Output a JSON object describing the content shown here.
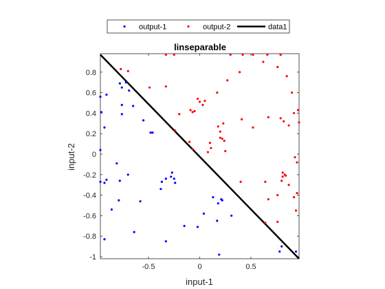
{
  "chart_data": {
    "type": "scatter",
    "title": "linseparable",
    "xlabel": "input-1",
    "ylabel": "input-2",
    "xlim": [
      -0.97,
      0.97
    ],
    "ylim": [
      -1.02,
      0.98
    ],
    "xticks": [
      -0.5,
      0,
      0.5
    ],
    "yticks": [
      -1,
      -0.8,
      -0.6,
      -0.4,
      -0.2,
      0,
      0.2,
      0.4,
      0.6,
      0.8
    ],
    "xtick_labels": [
      "-0.5",
      "0",
      "0.5"
    ],
    "ytick_labels": [
      "-1",
      "-0.8",
      "-0.6",
      "-0.4",
      "-0.2",
      "0",
      "0.2",
      "0.4",
      "0.6",
      "0.8"
    ],
    "grid": false,
    "legend_position": "top-center outside",
    "series": [
      {
        "name": "output-1",
        "kind": "points",
        "color": "#0000ff",
        "points": [
          [
            -0.97,
            0.56
          ],
          [
            -0.96,
            0.41
          ],
          [
            -0.91,
            0.58
          ],
          [
            -0.93,
            0.26
          ],
          [
            -0.78,
            0.69
          ],
          [
            -0.76,
            0.65
          ],
          [
            -0.72,
            0.7
          ],
          [
            -0.69,
            0.62
          ],
          [
            -0.76,
            0.39
          ],
          [
            -0.76,
            0.48
          ],
          [
            -0.65,
            0.47
          ],
          [
            -0.55,
            0.33
          ],
          [
            -0.48,
            0.21
          ],
          [
            -0.46,
            0.21
          ],
          [
            -0.97,
            0.04
          ],
          [
            -0.97,
            -0.27
          ],
          [
            -0.93,
            -0.28
          ],
          [
            -0.91,
            -0.25
          ],
          [
            -0.81,
            -0.09
          ],
          [
            -0.78,
            -0.26
          ],
          [
            -0.7,
            -0.2
          ],
          [
            -0.86,
            -0.54
          ],
          [
            -0.79,
            -0.45
          ],
          [
            -0.58,
            -0.46
          ],
          [
            -0.93,
            -0.83
          ],
          [
            -0.64,
            -0.76
          ],
          [
            -0.38,
            -0.34
          ],
          [
            -0.37,
            -0.27
          ],
          [
            -0.33,
            -0.24
          ],
          [
            -0.28,
            -0.22
          ],
          [
            -0.27,
            -0.18
          ],
          [
            -0.25,
            -0.24
          ],
          [
            -0.24,
            -0.28
          ],
          [
            -0.33,
            -0.85
          ],
          [
            -0.15,
            -0.7
          ],
          [
            -0.02,
            -0.71
          ],
          [
            0.04,
            -0.58
          ],
          [
            0.13,
            -0.42
          ],
          [
            0.18,
            -0.48
          ],
          [
            0.22,
            -0.45
          ],
          [
            0.17,
            -0.65
          ],
          [
            0.21,
            -0.44
          ],
          [
            0.31,
            -0.6
          ],
          [
            0.19,
            -0.98
          ],
          [
            0.78,
            -0.95
          ],
          [
            0.8,
            -0.9
          ],
          [
            0.94,
            -0.95
          ]
        ]
      },
      {
        "name": "output-2",
        "kind": "points",
        "color": "#ff0000",
        "points": [
          [
            -0.77,
            0.83
          ],
          [
            -0.7,
            0.81
          ],
          [
            -0.49,
            0.65
          ],
          [
            -0.33,
            0.66
          ],
          [
            -0.33,
            0.97
          ],
          [
            -0.25,
            0.97
          ],
          [
            -0.2,
            0.39
          ],
          [
            -0.24,
            0.23
          ],
          [
            -0.09,
            0.43
          ],
          [
            -0.07,
            0.41
          ],
          [
            -0.05,
            0.42
          ],
          [
            -0.02,
            0.54
          ],
          [
            0.0,
            0.51
          ],
          [
            0.03,
            0.48
          ],
          [
            0.05,
            0.52
          ],
          [
            0.17,
            0.6
          ],
          [
            0.27,
            0.72
          ],
          [
            0.3,
            0.97
          ],
          [
            0.39,
            0.8
          ],
          [
            0.42,
            0.97
          ],
          [
            0.52,
            0.97
          ],
          [
            0.62,
            0.9
          ],
          [
            0.66,
            0.97
          ],
          [
            0.79,
            0.97
          ],
          [
            0.85,
            0.76
          ],
          [
            0.76,
            0.85
          ],
          [
            0.79,
            0.97
          ],
          [
            0.9,
            0.6
          ],
          [
            0.92,
            0.4
          ],
          [
            0.96,
            0.43
          ],
          [
            0.97,
            0.31
          ],
          [
            0.2,
            0.22
          ],
          [
            0.23,
            0.3
          ],
          [
            0.22,
            0.15
          ],
          [
            0.2,
            0.16
          ],
          [
            0.24,
            0.13
          ],
          [
            0.18,
            0.27
          ],
          [
            0.1,
            0.11
          ],
          [
            0.11,
            0.06
          ],
          [
            -0.1,
            0.12
          ],
          [
            -0.07,
            0.05
          ],
          [
            0.08,
            0.02
          ],
          [
            0.25,
            0.03
          ],
          [
            0.41,
            0.34
          ],
          [
            0.52,
            0.26
          ],
          [
            0.67,
            0.36
          ],
          [
            0.79,
            0.35
          ],
          [
            0.82,
            0.32
          ],
          [
            0.87,
            0.28
          ],
          [
            0.93,
            -0.03
          ],
          [
            0.95,
            -0.08
          ],
          [
            0.8,
            -0.26
          ],
          [
            0.81,
            -0.18
          ],
          [
            0.83,
            -0.2
          ],
          [
            0.84,
            -0.21
          ],
          [
            0.64,
            -0.27
          ],
          [
            0.67,
            -0.44
          ],
          [
            0.76,
            -0.4
          ],
          [
            0.81,
            -0.22
          ],
          [
            0.87,
            -0.3
          ],
          [
            0.92,
            -0.42
          ],
          [
            0.95,
            -0.38
          ],
          [
            0.4,
            -0.27
          ],
          [
            0.64,
            -0.67
          ],
          [
            0.76,
            -0.66
          ],
          [
            0.94,
            -0.55
          ]
        ]
      },
      {
        "name": "data1",
        "kind": "line",
        "color": "#000000",
        "x": [
          -0.97,
          0.97
        ],
        "y": [
          0.97,
          -1.02
        ]
      }
    ]
  }
}
